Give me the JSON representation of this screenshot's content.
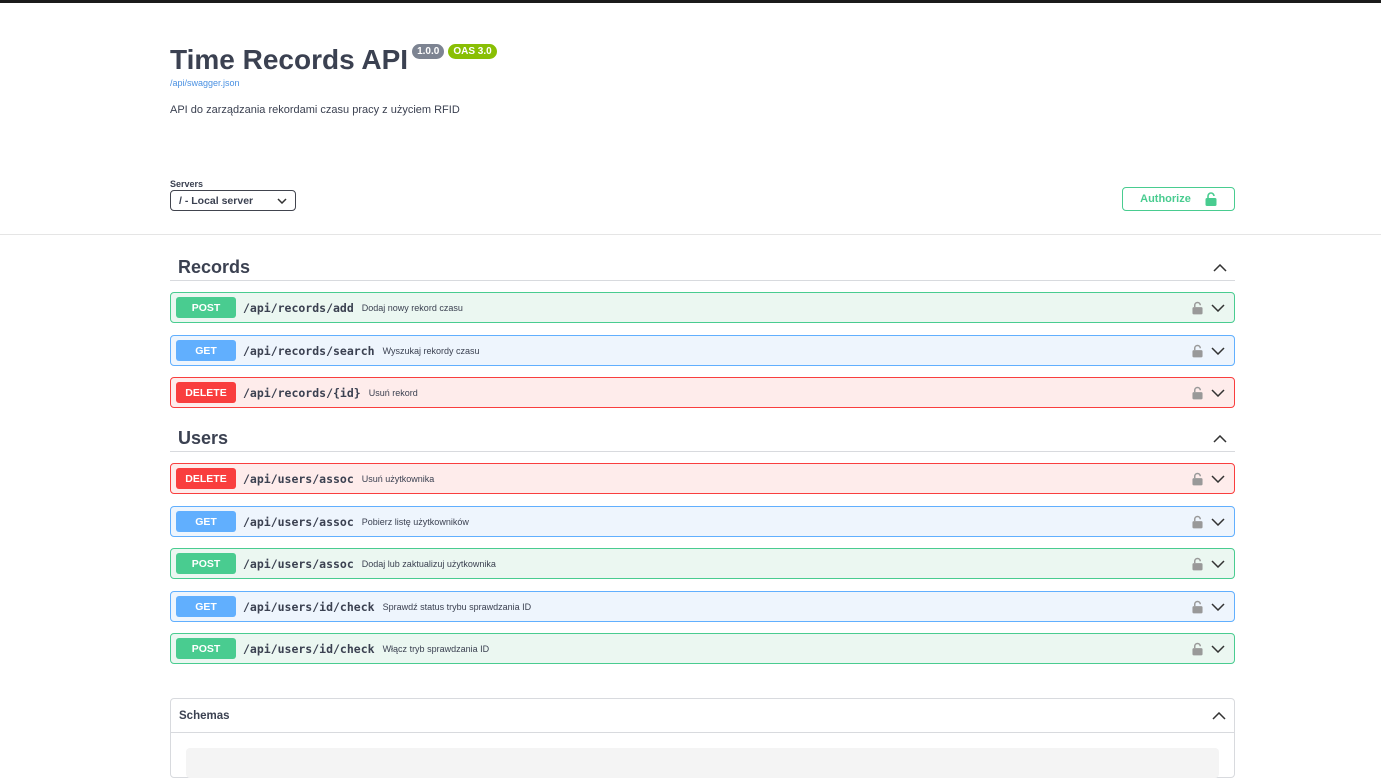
{
  "info": {
    "title": "Time Records API",
    "version": "1.0.0",
    "oas": "OAS 3.0",
    "spec_link": "/api/swagger.json",
    "description": "API do zarządzania rekordami czasu pracy z użyciem RFID"
  },
  "servers": {
    "label": "Servers",
    "selected": "/ - Local server"
  },
  "authorize": {
    "label": "Authorize"
  },
  "colors": {
    "post": "#49cc90",
    "get": "#61affe",
    "delete": "#f93e3e"
  },
  "tags": [
    {
      "name": "Records",
      "operations": [
        {
          "method": "POST",
          "path": "/api/records/add",
          "summary": "Dodaj nowy rekord czasu"
        },
        {
          "method": "GET",
          "path": "/api/records/search",
          "summary": "Wyszukaj rekordy czasu"
        },
        {
          "method": "DELETE",
          "path": "/api/records/{id}",
          "summary": "Usuń rekord"
        }
      ]
    },
    {
      "name": "Users",
      "operations": [
        {
          "method": "DELETE",
          "path": "/api/users/assoc",
          "summary": "Usuń użytkownika"
        },
        {
          "method": "GET",
          "path": "/api/users/assoc",
          "summary": "Pobierz listę użytkowników"
        },
        {
          "method": "POST",
          "path": "/api/users/assoc",
          "summary": "Dodaj lub zaktualizuj użytkownika"
        },
        {
          "method": "GET",
          "path": "/api/users/id/check",
          "summary": "Sprawdź status trybu sprawdzania ID"
        },
        {
          "method": "POST",
          "path": "/api/users/id/check",
          "summary": "Włącz tryb sprawdzania ID"
        }
      ]
    }
  ],
  "schemas": {
    "label": "Schemas"
  }
}
